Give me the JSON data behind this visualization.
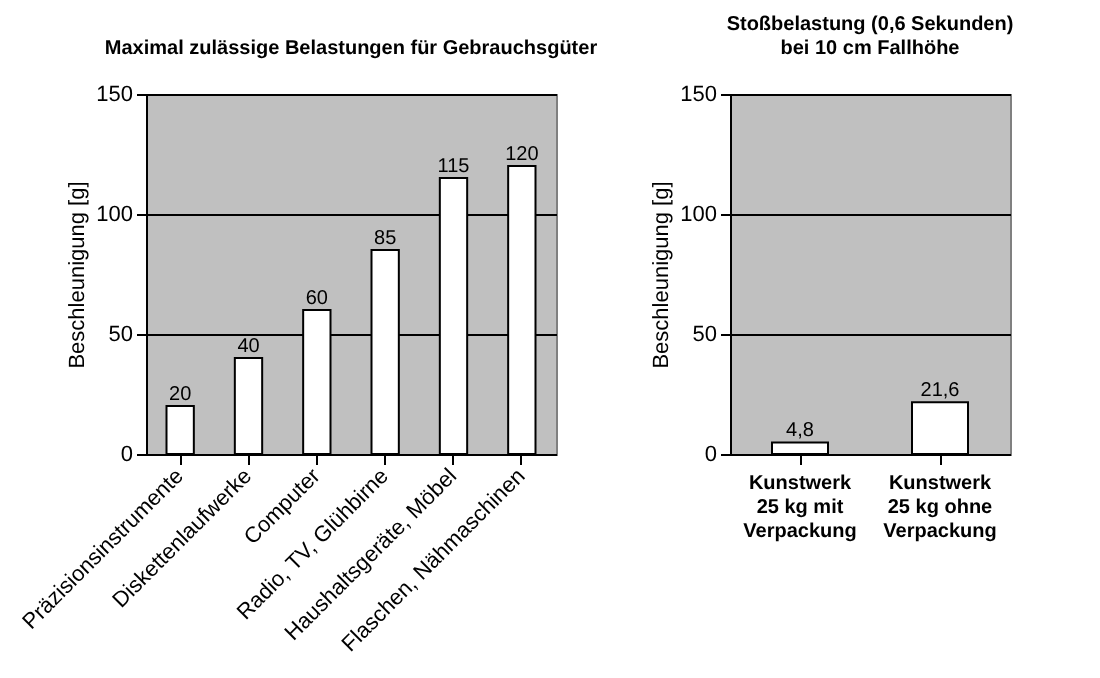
{
  "chart_data": [
    {
      "type": "bar",
      "title": "Maximal zulässige Belastungen für Gebrauchsgüter",
      "ylabel": "Beschleunigung [g]",
      "categories": [
        "Präzisionsinstrumente",
        "Diskettenlaufwerke",
        "Computer",
        "Radio, TV, Glühbirne",
        "Haushaltsgeräte, Möbel",
        "Flaschen, Nähmaschinen"
      ],
      "values": [
        20,
        40,
        60,
        85,
        115,
        120
      ],
      "color": "#ffffff",
      "ylim": [
        0,
        150
      ],
      "yticks": [
        0,
        50,
        100,
        150
      ],
      "grid": "y",
      "data_labels": true
    },
    {
      "type": "bar",
      "title": "Stoßbelastung (0,6 Sekunden)\nbei 10 cm Fallhöhe",
      "ylabel": "Beschleunigung [g]",
      "categories": [
        "Kunstwerk\n25 kg mit\nVerpackung",
        "Kunstwerk\n25 kg ohne\nVerpackung"
      ],
      "values": [
        4.8,
        21.6
      ],
      "value_labels": [
        "4,8",
        "21,6"
      ],
      "color": "#ffffff",
      "ylim": [
        0,
        150
      ],
      "yticks": [
        0,
        50,
        100,
        150
      ],
      "grid": "y"
    }
  ]
}
